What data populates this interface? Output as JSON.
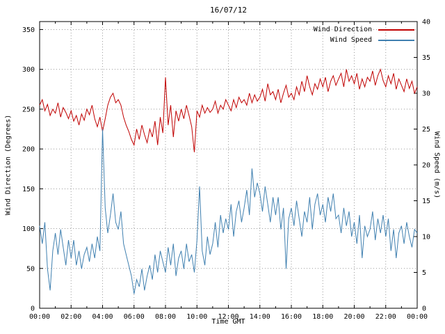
{
  "chart_data": {
    "type": "line",
    "title": "16/07/12",
    "xlabel": "Time GMT",
    "ylabel": "Wind Direction (Degrees)",
    "y2label": "Wind Speed (m/s)",
    "grid": true,
    "legend_position": "top-right-inside",
    "xlim_hours": [
      0,
      24
    ],
    "ylim": [
      0,
      360
    ],
    "y2lim": [
      0,
      40
    ],
    "x_ticks": [
      "00:00",
      "02:00",
      "04:00",
      "06:00",
      "08:00",
      "10:00",
      "12:00",
      "14:00",
      "16:00",
      "18:00",
      "20:00",
      "22:00",
      "00:00"
    ],
    "x_tick_hours": [
      0,
      2,
      4,
      6,
      8,
      10,
      12,
      14,
      16,
      18,
      20,
      22,
      24
    ],
    "y_ticks": [
      0,
      50,
      100,
      150,
      200,
      250,
      300,
      350
    ],
    "y2_ticks": [
      0,
      5,
      10,
      15,
      20,
      25,
      30,
      35,
      40
    ],
    "sample_interval_minutes": 10,
    "series": [
      {
        "name": "Wind Direction",
        "axis": "left",
        "color": "#c00000",
        "values": [
          255,
          262,
          248,
          256,
          242,
          250,
          245,
          258,
          240,
          252,
          246,
          238,
          248,
          235,
          242,
          230,
          244,
          236,
          250,
          243,
          255,
          238,
          228,
          240,
          222,
          238,
          255,
          265,
          270,
          258,
          262,
          255,
          240,
          230,
          222,
          212,
          205,
          225,
          212,
          230,
          218,
          208,
          225,
          215,
          235,
          205,
          240,
          220,
          290,
          230,
          255,
          215,
          248,
          235,
          250,
          238,
          255,
          242,
          228,
          196,
          248,
          240,
          255,
          245,
          252,
          246,
          250,
          260,
          245,
          255,
          250,
          262,
          255,
          248,
          262,
          252,
          265,
          258,
          262,
          255,
          270,
          258,
          268,
          260,
          265,
          275,
          260,
          282,
          268,
          272,
          262,
          275,
          258,
          270,
          280,
          265,
          270,
          262,
          278,
          268,
          285,
          272,
          292,
          278,
          268,
          282,
          275,
          288,
          278,
          290,
          272,
          285,
          292,
          280,
          288,
          295,
          278,
          300,
          285,
          292,
          282,
          295,
          275,
          288,
          278,
          290,
          285,
          298,
          280,
          292,
          300,
          286,
          278,
          292,
          282,
          295,
          275,
          288,
          280,
          272,
          288,
          276,
          285,
          270,
          278
        ]
      },
      {
        "name": "Wind Speed",
        "axis": "right",
        "color": "#4080b0",
        "values": [
          11.5,
          9,
          12,
          5.5,
          2.5,
          8,
          10.5,
          7.5,
          11,
          8.5,
          6,
          9.5,
          7,
          9.5,
          6,
          8,
          5.5,
          7.5,
          8.5,
          6.5,
          9,
          7,
          10,
          8,
          25,
          14,
          10.5,
          13,
          16,
          12,
          11,
          13.5,
          9,
          7.5,
          6,
          4.5,
          2,
          4,
          3,
          5.5,
          2.5,
          4.5,
          6,
          4,
          7.5,
          5,
          8,
          6.5,
          5,
          8.5,
          6,
          9,
          4.5,
          7,
          8,
          5.5,
          9,
          6.5,
          7.5,
          5,
          9.5,
          17,
          8,
          6,
          10,
          7.5,
          9,
          12,
          8.5,
          13,
          10.5,
          12.5,
          11,
          14.5,
          10,
          13.5,
          15,
          12,
          14,
          16.5,
          13,
          19.5,
          15.5,
          17.5,
          16,
          13.5,
          17,
          14.5,
          12,
          15.5,
          13,
          15.5,
          11,
          14,
          5.5,
          12.5,
          14,
          11.5,
          15,
          12.5,
          10,
          13.5,
          12,
          15.5,
          11,
          14.5,
          16,
          13,
          14.5,
          12,
          15.5,
          13.5,
          16,
          12.5,
          13,
          10.5,
          14,
          11.5,
          13.5,
          10,
          12,
          9,
          13,
          7,
          11.5,
          10,
          11,
          13.5,
          9.5,
          12.5,
          10.5,
          13,
          10,
          12.5,
          8,
          11,
          7,
          10.5,
          11.5,
          9,
          12,
          10,
          8.5,
          11,
          10.5
        ]
      }
    ]
  }
}
